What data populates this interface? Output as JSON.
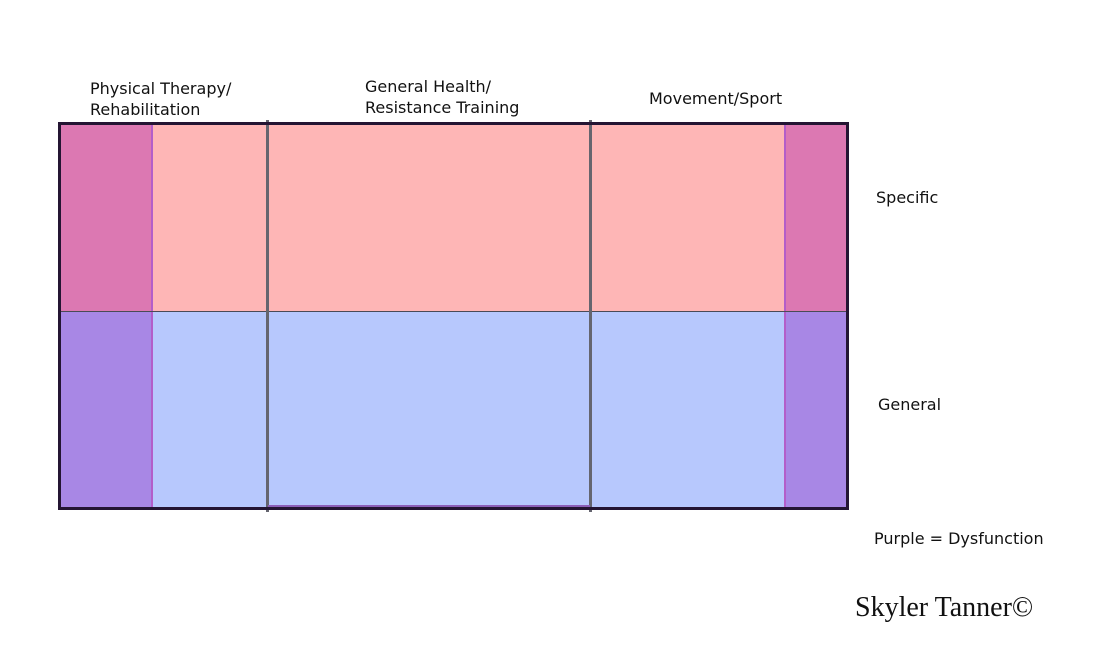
{
  "columns": {
    "physical_therapy": {
      "line1": "Physical Therapy/",
      "line2": "Rehabilitation"
    },
    "general_health": {
      "line1": "General Health/",
      "line2": "Resistance Training"
    },
    "movement_sport": {
      "line1": "Movement/Sport"
    }
  },
  "rows": {
    "specific": "Specific",
    "general": "General"
  },
  "legend": {
    "dysfunction": "Purple = Dysfunction"
  },
  "signature": "Skyler Tanner©",
  "colors": {
    "specific_fill": "#feb6b6",
    "general_fill": "#b7c8fd",
    "dysfunction_specific": "#dc78b2",
    "dysfunction_general": "#a887e5",
    "divider": "#65656f",
    "frame": "#241533"
  }
}
